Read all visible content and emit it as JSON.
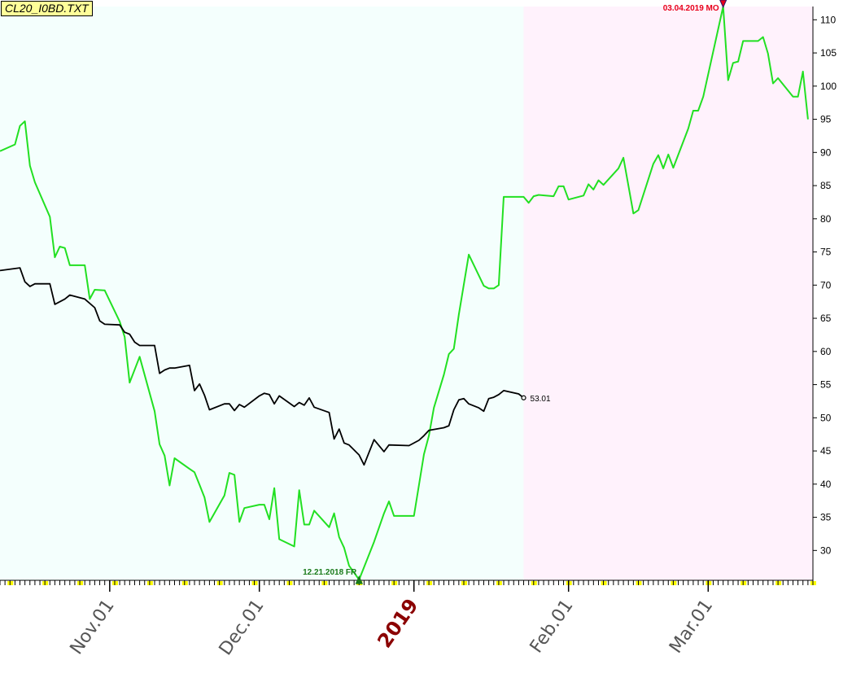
{
  "window": {
    "title": "CL20_I0BD.TXT"
  },
  "colors": {
    "past_bg": "#f4fffd",
    "future_bg": "#fff2fc",
    "forecast_line": "#22e022",
    "price_line": "#000000",
    "high_marker": "#e8001a",
    "low_marker": "#1a7a1a",
    "year_label": "#8b0000",
    "tick_highlight": "#ffff00"
  },
  "chart_data": {
    "type": "line",
    "x_axis": {
      "type": "date",
      "range": [
        "2018-10-10",
        "2019-03-22"
      ],
      "labels": [
        {
          "date": "2018-11-01",
          "text": "Nov.01"
        },
        {
          "date": "2018-12-01",
          "text": "Dec.01"
        },
        {
          "date": "2019-01-01",
          "text": "2019",
          "year": true
        },
        {
          "date": "2019-02-01",
          "text": "Feb.01"
        },
        {
          "date": "2019-03-01",
          "text": "Mar.01"
        }
      ]
    },
    "y_axis": {
      "ylim": [
        25.5,
        112
      ],
      "ticks": [
        30,
        35,
        40,
        45,
        50,
        55,
        60,
        65,
        70,
        75,
        80,
        85,
        90,
        95,
        100,
        105,
        110
      ]
    },
    "forecast_start": "2019-01-23",
    "series": [
      {
        "color": "#22e022",
        "points": [
          [
            "2018-10-10",
            90.2
          ],
          [
            "2018-10-13",
            91.2
          ],
          [
            "2018-10-14",
            94.0
          ],
          [
            "2018-10-15",
            94.7
          ],
          [
            "2018-10-16",
            88.0
          ],
          [
            "2018-10-17",
            85.5
          ],
          [
            "2018-10-20",
            80.3
          ],
          [
            "2018-10-21",
            74.2
          ],
          [
            "2018-10-22",
            75.8
          ],
          [
            "2018-10-23",
            75.6
          ],
          [
            "2018-10-24",
            73.0
          ],
          [
            "2018-10-27",
            73.0
          ],
          [
            "2018-10-28",
            67.9
          ],
          [
            "2018-10-29",
            69.3
          ],
          [
            "2018-10-31",
            69.2
          ],
          [
            "2018-11-03",
            64.5
          ],
          [
            "2018-11-04",
            62.2
          ],
          [
            "2018-11-05",
            55.3
          ],
          [
            "2018-11-07",
            59.2
          ],
          [
            "2018-11-10",
            51.0
          ],
          [
            "2018-11-11",
            46.0
          ],
          [
            "2018-11-12",
            44.3
          ],
          [
            "2018-11-13",
            39.8
          ],
          [
            "2018-11-14",
            43.9
          ],
          [
            "2018-11-17",
            42.3
          ],
          [
            "2018-11-18",
            41.8
          ],
          [
            "2018-11-19",
            39.9
          ],
          [
            "2018-11-20",
            38.0
          ],
          [
            "2018-11-21",
            34.3
          ],
          [
            "2018-11-24",
            38.3
          ],
          [
            "2018-11-25",
            41.7
          ],
          [
            "2018-11-26",
            41.4
          ],
          [
            "2018-11-27",
            34.3
          ],
          [
            "2018-11-28",
            36.4
          ],
          [
            "2018-12-01",
            36.9
          ],
          [
            "2018-12-02",
            36.9
          ],
          [
            "2018-12-03",
            34.7
          ],
          [
            "2018-12-04",
            39.4
          ],
          [
            "2018-12-05",
            31.7
          ],
          [
            "2018-12-08",
            30.6
          ],
          [
            "2018-12-09",
            39.1
          ],
          [
            "2018-12-10",
            33.9
          ],
          [
            "2018-12-11",
            33.9
          ],
          [
            "2018-12-12",
            36.0
          ],
          [
            "2018-12-15",
            33.5
          ],
          [
            "2018-12-16",
            35.6
          ],
          [
            "2018-12-17",
            32.0
          ],
          [
            "2018-12-18",
            30.4
          ],
          [
            "2018-12-19",
            27.7
          ],
          [
            "2018-12-21",
            25.6
          ],
          [
            "2018-12-24",
            31.3
          ],
          [
            "2018-12-26",
            35.6
          ],
          [
            "2018-12-27",
            37.4
          ],
          [
            "2018-12-28",
            35.2
          ],
          [
            "2018-12-31",
            35.2
          ],
          [
            "2019-01-01",
            35.2
          ],
          [
            "2019-01-03",
            44.5
          ],
          [
            "2019-01-04",
            47.3
          ],
          [
            "2019-01-05",
            51.5
          ],
          [
            "2019-01-07",
            56.5
          ],
          [
            "2019-01-08",
            59.6
          ],
          [
            "2019-01-09",
            60.4
          ],
          [
            "2019-01-10",
            65.6
          ],
          [
            "2019-01-12",
            74.6
          ],
          [
            "2019-01-15",
            69.9
          ],
          [
            "2019-01-16",
            69.5
          ],
          [
            "2019-01-17",
            69.5
          ],
          [
            "2019-01-18",
            70.0
          ],
          [
            "2019-01-19",
            83.3
          ],
          [
            "2019-01-23",
            83.3
          ],
          [
            "2019-01-24",
            82.4
          ],
          [
            "2019-01-25",
            83.4
          ],
          [
            "2019-01-26",
            83.6
          ],
          [
            "2019-01-29",
            83.4
          ],
          [
            "2019-01-30",
            84.9
          ],
          [
            "2019-01-31",
            84.9
          ],
          [
            "2019-02-01",
            82.9
          ],
          [
            "2019-02-04",
            83.5
          ],
          [
            "2019-02-05",
            85.2
          ],
          [
            "2019-02-06",
            84.4
          ],
          [
            "2019-02-07",
            85.8
          ],
          [
            "2019-02-08",
            85.1
          ],
          [
            "2019-02-11",
            87.6
          ],
          [
            "2019-02-12",
            89.2
          ],
          [
            "2019-02-14",
            80.8
          ],
          [
            "2019-02-15",
            81.3
          ],
          [
            "2019-02-18",
            88.3
          ],
          [
            "2019-02-19",
            89.6
          ],
          [
            "2019-02-20",
            87.6
          ],
          [
            "2019-02-21",
            89.7
          ],
          [
            "2019-02-22",
            87.7
          ],
          [
            "2019-02-25",
            93.6
          ],
          [
            "2019-02-26",
            96.3
          ],
          [
            "2019-02-27",
            96.3
          ],
          [
            "2019-02-28",
            98.4
          ],
          [
            "2019-03-04",
            112.0
          ],
          [
            "2019-03-05",
            100.9
          ],
          [
            "2019-03-06",
            103.5
          ],
          [
            "2019-03-07",
            103.7
          ],
          [
            "2019-03-08",
            106.8
          ],
          [
            "2019-03-11",
            106.8
          ],
          [
            "2019-03-12",
            107.4
          ],
          [
            "2019-03-13",
            104.9
          ],
          [
            "2019-03-14",
            100.4
          ],
          [
            "2019-03-15",
            101.2
          ],
          [
            "2019-03-18",
            98.4
          ],
          [
            "2019-03-19",
            98.4
          ],
          [
            "2019-03-20",
            102.2
          ],
          [
            "2019-03-21",
            95.0
          ]
        ]
      },
      {
        "color": "#000000",
        "points": [
          [
            "2018-10-10",
            72.2
          ],
          [
            "2018-10-14",
            72.6
          ],
          [
            "2018-10-15",
            70.5
          ],
          [
            "2018-10-16",
            69.8
          ],
          [
            "2018-10-17",
            70.2
          ],
          [
            "2018-10-20",
            70.2
          ],
          [
            "2018-10-21",
            67.1
          ],
          [
            "2018-10-23",
            67.9
          ],
          [
            "2018-10-24",
            68.5
          ],
          [
            "2018-10-27",
            67.9
          ],
          [
            "2018-10-29",
            66.6
          ],
          [
            "2018-10-30",
            64.6
          ],
          [
            "2018-10-31",
            64.1
          ],
          [
            "2018-11-03",
            64.0
          ],
          [
            "2018-11-04",
            62.9
          ],
          [
            "2018-11-05",
            62.6
          ],
          [
            "2018-11-06",
            61.4
          ],
          [
            "2018-11-07",
            60.9
          ],
          [
            "2018-11-10",
            60.9
          ],
          [
            "2018-11-11",
            56.7
          ],
          [
            "2018-11-12",
            57.2
          ],
          [
            "2018-11-13",
            57.5
          ],
          [
            "2018-11-14",
            57.5
          ],
          [
            "2018-11-17",
            57.9
          ],
          [
            "2018-11-18",
            54.1
          ],
          [
            "2018-11-19",
            55.1
          ],
          [
            "2018-11-20",
            53.4
          ],
          [
            "2018-11-21",
            51.2
          ],
          [
            "2018-11-24",
            52.1
          ],
          [
            "2018-11-25",
            52.1
          ],
          [
            "2018-11-26",
            51.1
          ],
          [
            "2018-11-27",
            52.0
          ],
          [
            "2018-11-28",
            51.6
          ],
          [
            "2018-12-01",
            53.3
          ],
          [
            "2018-12-02",
            53.7
          ],
          [
            "2018-12-03",
            53.5
          ],
          [
            "2018-12-04",
            52.1
          ],
          [
            "2018-12-05",
            53.3
          ],
          [
            "2018-12-08",
            51.7
          ],
          [
            "2018-12-09",
            52.3
          ],
          [
            "2018-12-10",
            51.9
          ],
          [
            "2018-12-11",
            53.0
          ],
          [
            "2018-12-12",
            51.6
          ],
          [
            "2018-12-15",
            50.8
          ],
          [
            "2018-12-16",
            46.8
          ],
          [
            "2018-12-17",
            48.3
          ],
          [
            "2018-12-18",
            46.2
          ],
          [
            "2018-12-19",
            45.9
          ],
          [
            "2018-12-21",
            44.4
          ],
          [
            "2018-12-22",
            42.9
          ],
          [
            "2018-12-24",
            46.7
          ],
          [
            "2018-12-26",
            44.9
          ],
          [
            "2018-12-27",
            45.9
          ],
          [
            "2018-12-31",
            45.8
          ],
          [
            "2019-01-02",
            46.6
          ],
          [
            "2019-01-03",
            47.3
          ],
          [
            "2019-01-04",
            48.1
          ],
          [
            "2019-01-07",
            48.5
          ],
          [
            "2019-01-08",
            48.8
          ],
          [
            "2019-01-09",
            51.2
          ],
          [
            "2019-01-10",
            52.7
          ],
          [
            "2019-01-11",
            52.9
          ],
          [
            "2019-01-12",
            52.1
          ],
          [
            "2019-01-14",
            51.5
          ],
          [
            "2019-01-15",
            51.0
          ],
          [
            "2019-01-16",
            52.9
          ],
          [
            "2019-01-17",
            53.1
          ],
          [
            "2019-01-18",
            53.5
          ],
          [
            "2019-01-19",
            54.1
          ],
          [
            "2019-01-22",
            53.6
          ],
          [
            "2019-01-23",
            53.01
          ]
        ]
      }
    ],
    "annotations": [
      {
        "date": "2019-03-04",
        "value": 112.0,
        "text": "03.04.2019 MO",
        "kind": "high"
      },
      {
        "date": "2018-12-21",
        "value": 25.6,
        "text": "12.21.2018 FR",
        "kind": "low"
      },
      {
        "date": "2019-01-23",
        "value": 53.01,
        "text": "53.01",
        "kind": "last"
      }
    ]
  }
}
